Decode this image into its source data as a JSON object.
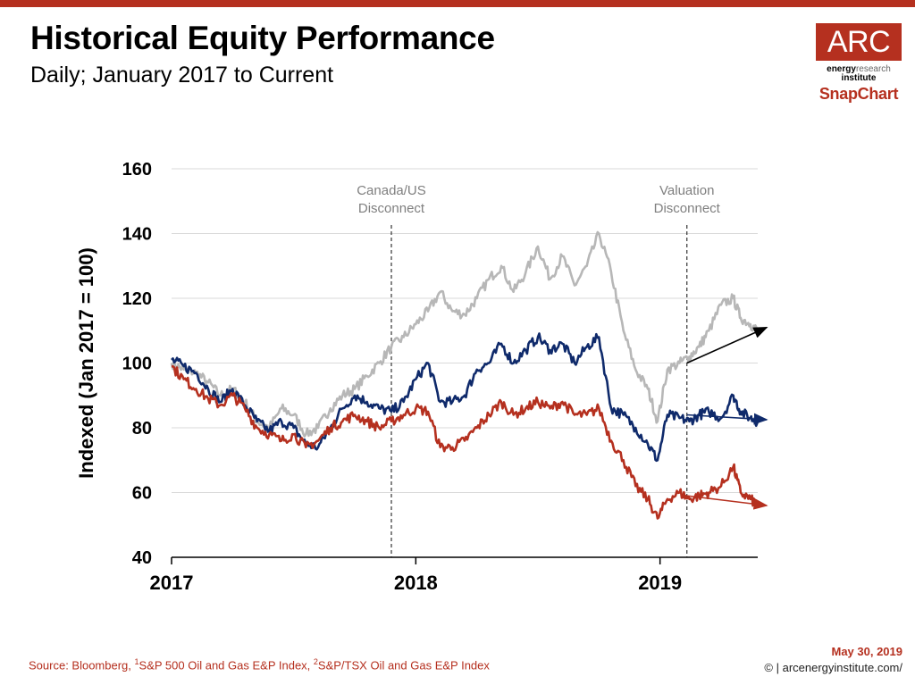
{
  "header": {
    "title": "Historical Equity Performance",
    "subtitle": "Daily; January 2017 to Current"
  },
  "logo": {
    "main": "ARC",
    "line1_bold": "energy",
    "line1_light": "research",
    "line2": "institute",
    "snap": "SnapChart"
  },
  "footer": {
    "source_prefix": "Source: Bloomberg, ",
    "sup1": "1",
    "source_mid": "S&P 500 Oil and Gas E&P Index, ",
    "sup2": "2",
    "source_end": "S&P/TSX Oil and Gas E&P Index",
    "date": "May 30, 2019",
    "copyright": "© | arcenergyinstitute.com/"
  },
  "colors": {
    "accent": "#b5301f",
    "gray_series": "#b7b7b7",
    "navy_series": "#0f2a6b",
    "red_series": "#b5301f"
  },
  "chart_data": {
    "type": "line",
    "title": "",
    "xlabel": "",
    "ylabel": "Indexed (Jan 2017 = 100)",
    "ylim": [
      40,
      160
    ],
    "yticks": [
      40,
      60,
      80,
      100,
      120,
      140,
      160
    ],
    "xlim": [
      2017.0,
      2019.4
    ],
    "xticks": [
      {
        "v": 2017,
        "label": "2017"
      },
      {
        "v": 2018,
        "label": "2018"
      },
      {
        "v": 2019,
        "label": "2019"
      }
    ],
    "grid": "horizontal",
    "annotations": [
      {
        "x": 2017.9,
        "lines": [
          "Canada/US",
          "Disconnect"
        ]
      },
      {
        "x": 2019.11,
        "lines": [
          "Valuation",
          "Disconnect"
        ]
      }
    ],
    "series": [
      {
        "color": "#b7b7b7",
        "x": [
          2017.0,
          2017.05,
          2017.1,
          2017.15,
          2017.2,
          2017.25,
          2017.3,
          2017.35,
          2017.4,
          2017.45,
          2017.5,
          2017.55,
          2017.6,
          2017.65,
          2017.7,
          2017.75,
          2017.8,
          2017.85,
          2017.9,
          2017.95,
          2018.0,
          2018.05,
          2018.1,
          2018.15,
          2018.2,
          2018.25,
          2018.3,
          2018.35,
          2018.4,
          2018.45,
          2018.5,
          2018.55,
          2018.6,
          2018.65,
          2018.7,
          2018.75,
          2018.8,
          2018.85,
          2018.9,
          2018.95,
          2018.99,
          2019.03,
          2019.08,
          2019.12,
          2019.16,
          2019.2,
          2019.25,
          2019.3,
          2019.33,
          2019.37,
          2019.4
        ],
        "y": [
          100,
          98,
          97,
          94,
          90,
          92,
          88,
          82,
          80,
          86,
          84,
          78,
          80,
          86,
          90,
          92,
          96,
          100,
          105,
          108,
          112,
          116,
          122,
          116,
          115,
          120,
          126,
          130,
          122,
          128,
          136,
          126,
          133,
          124,
          130,
          140,
          128,
          110,
          98,
          92,
          82,
          98,
          100,
          102,
          105,
          110,
          118,
          120,
          114,
          112,
          110
        ]
      },
      {
        "color": "#0f2a6b",
        "x": [
          2017.0,
          2017.05,
          2017.1,
          2017.15,
          2017.2,
          2017.25,
          2017.3,
          2017.35,
          2017.4,
          2017.45,
          2017.5,
          2017.55,
          2017.6,
          2017.65,
          2017.7,
          2017.75,
          2017.8,
          2017.85,
          2017.9,
          2017.95,
          2018.0,
          2018.05,
          2018.1,
          2018.15,
          2018.2,
          2018.25,
          2018.3,
          2018.35,
          2018.4,
          2018.45,
          2018.5,
          2018.55,
          2018.6,
          2018.65,
          2018.7,
          2018.75,
          2018.8,
          2018.85,
          2018.9,
          2018.95,
          2018.99,
          2019.03,
          2019.08,
          2019.12,
          2019.16,
          2019.2,
          2019.25,
          2019.3,
          2019.33,
          2019.37,
          2019.4
        ],
        "y": [
          101,
          99,
          97,
          92,
          88,
          92,
          87,
          82,
          79,
          82,
          80,
          75,
          74,
          80,
          86,
          90,
          88,
          86,
          85,
          88,
          95,
          100,
          88,
          88,
          90,
          98,
          100,
          106,
          100,
          104,
          108,
          104,
          106,
          100,
          105,
          108,
          86,
          84,
          80,
          75,
          70,
          84,
          83,
          82,
          84,
          85,
          83,
          90,
          85,
          83,
          82
        ]
      },
      {
        "color": "#b5301f",
        "x": [
          2017.0,
          2017.05,
          2017.1,
          2017.15,
          2017.2,
          2017.25,
          2017.3,
          2017.35,
          2017.4,
          2017.45,
          2017.5,
          2017.55,
          2017.6,
          2017.65,
          2017.7,
          2017.75,
          2017.8,
          2017.85,
          2017.9,
          2017.95,
          2018.0,
          2018.05,
          2018.1,
          2018.15,
          2018.2,
          2018.25,
          2018.3,
          2018.35,
          2018.4,
          2018.45,
          2018.5,
          2018.55,
          2018.6,
          2018.65,
          2018.7,
          2018.75,
          2018.8,
          2018.85,
          2018.9,
          2018.95,
          2018.99,
          2019.03,
          2019.08,
          2019.12,
          2019.16,
          2019.2,
          2019.25,
          2019.3,
          2019.33,
          2019.37,
          2019.4
        ],
        "y": [
          99,
          95,
          92,
          89,
          87,
          90,
          86,
          80,
          78,
          76,
          78,
          74,
          76,
          80,
          82,
          84,
          82,
          80,
          82,
          84,
          86,
          85,
          74,
          74,
          76,
          80,
          84,
          88,
          84,
          86,
          88,
          86,
          88,
          84,
          84,
          86,
          76,
          70,
          62,
          58,
          52,
          58,
          60,
          58,
          59,
          60,
          62,
          68,
          60,
          58,
          56
        ]
      }
    ],
    "trend_arrows": [
      {
        "color": "#000000",
        "from": [
          2019.11,
          100
        ],
        "to": [
          2019.4,
          111
        ]
      },
      {
        "color": "#0f2a6b",
        "from": [
          2019.11,
          84
        ],
        "to": [
          2019.4,
          82.5
        ]
      },
      {
        "color": "#b5301f",
        "from": [
          2019.11,
          59
        ],
        "to": [
          2019.4,
          56
        ]
      }
    ]
  }
}
